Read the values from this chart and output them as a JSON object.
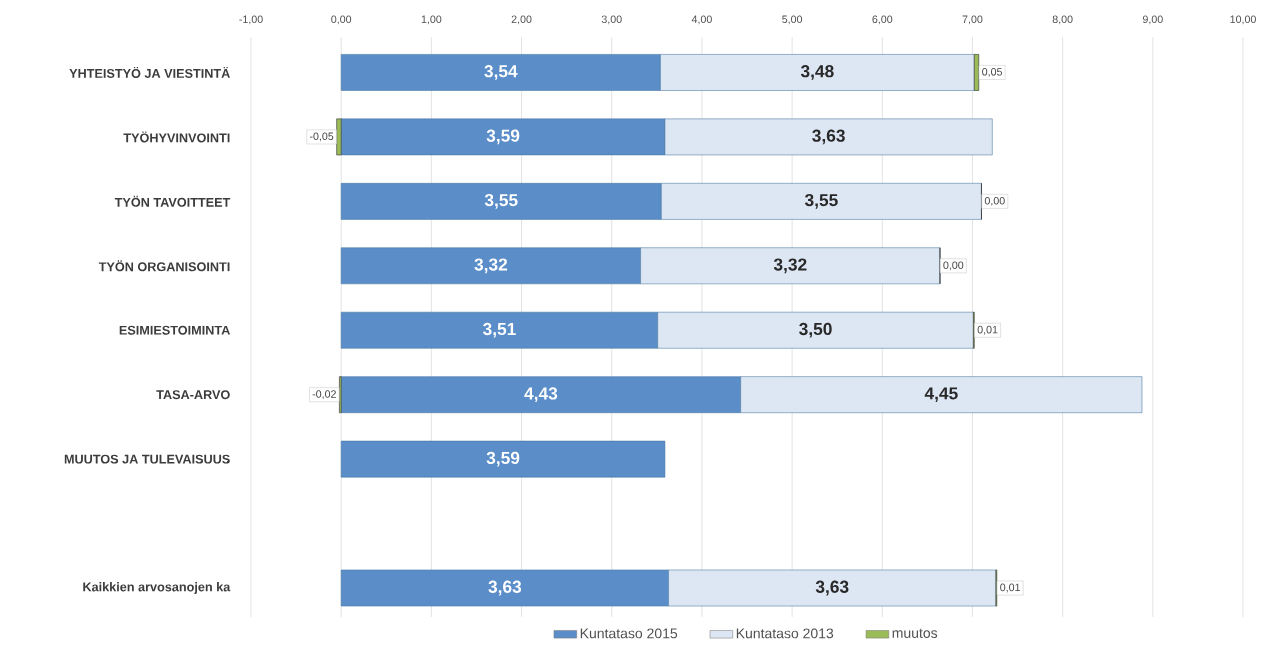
{
  "chart_data": {
    "type": "bar",
    "orientation": "horizontal",
    "stacked": true,
    "categories": [
      "YHTEISTYÖ JA VIESTINTÄ",
      "TYÖHYVINVOINTI",
      "TYÖN TAVOITTEET",
      "TYÖN ORGANISOINTI",
      "ESIMIESTOIMINTA",
      "TASA-ARVO",
      "MUUTOS JA TULEVAISUUS",
      null,
      "Kaikkien arvosanojen ka"
    ],
    "series": [
      {
        "name": "Kuntataso 2015",
        "color": "#5b8ec9",
        "values": [
          3.54,
          3.59,
          3.55,
          3.32,
          3.51,
          4.43,
          3.59,
          null,
          3.63
        ],
        "value_labels": [
          "3,54",
          "3,59",
          "3,55",
          "3,32",
          "3,51",
          "4,43",
          "3,59",
          null,
          "3,63"
        ]
      },
      {
        "name": "Kuntataso 2013",
        "color": "#dde7f3",
        "values": [
          3.48,
          3.63,
          3.55,
          3.32,
          3.5,
          4.45,
          null,
          null,
          3.63
        ],
        "value_labels": [
          "3,48",
          "3,63",
          "3,55",
          "3,32",
          "3,50",
          "4,45",
          null,
          null,
          "3,63"
        ]
      },
      {
        "name": "muutos",
        "color": "#9bbb59",
        "values": [
          0.05,
          -0.05,
          0.0,
          0.0,
          0.01,
          -0.02,
          null,
          null,
          0.01
        ],
        "value_labels": [
          "0,05",
          "-0,05",
          "0,00",
          "0,00",
          "0,01",
          "-0,02",
          null,
          null,
          "0,01"
        ]
      }
    ],
    "xlim": [
      -1,
      10
    ],
    "xticks": [
      {
        "value": -1,
        "label": "-1,00"
      },
      {
        "value": 0,
        "label": "0,00"
      },
      {
        "value": 1,
        "label": "1,00"
      },
      {
        "value": 2,
        "label": "2,00"
      },
      {
        "value": 3,
        "label": "3,00"
      },
      {
        "value": 4,
        "label": "4,00"
      },
      {
        "value": 5,
        "label": "5,00"
      },
      {
        "value": 6,
        "label": "6,00"
      },
      {
        "value": 7,
        "label": "7,00"
      },
      {
        "value": 8,
        "label": "8,00"
      },
      {
        "value": 9,
        "label": "9,00"
      },
      {
        "value": 10,
        "label": "10,00"
      }
    ],
    "grid": "x",
    "legend": "bottom"
  }
}
